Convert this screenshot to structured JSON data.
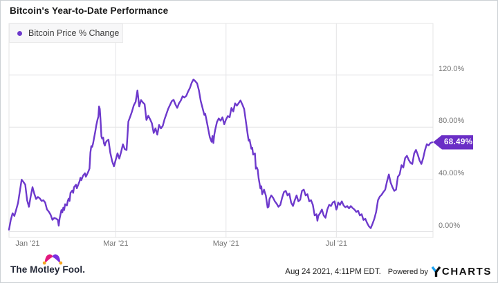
{
  "header": {
    "title": "Bitcoin's Year-to-Date Performance"
  },
  "legend": {
    "label": "Bitcoin Price % Change"
  },
  "colors": {
    "line": "#6d39cc",
    "badge_bg": "#6a2ec6",
    "grid": "#e4e4e6",
    "axis_label": "#757575",
    "legend_bg": "#f7f7f8",
    "fool_pink": "#e2187d",
    "fool_purple": "#7b2fe0",
    "fool_gold": "#f5a623",
    "ycharts_blue": "#18a0f0"
  },
  "chart_data": {
    "type": "line",
    "title": "Bitcoin's Year-to-Date Performance",
    "x_unit": "days_from_jan1_2021",
    "x_range_dates": [
      "2021-01-01",
      "2021-08-24"
    ],
    "grid": true,
    "legend_position": "top-left",
    "last_value": 68.49,
    "last_value_label": "68.49%",
    "x_axis": {
      "ticks": [
        {
          "day": 0,
          "label": "Jan '21"
        },
        {
          "day": 59,
          "label": "Mar '21"
        },
        {
          "day": 120,
          "label": "May '21"
        },
        {
          "day": 181,
          "label": "Jul '21"
        }
      ]
    },
    "y_axis": {
      "ticks": [
        {
          "value": 120,
          "label": "120.0%"
        },
        {
          "value": 80,
          "label": "80.00%"
        },
        {
          "value": 40,
          "label": "40.00%"
        },
        {
          "value": 0,
          "label": "0.00%"
        }
      ],
      "range": [
        -5,
        145
      ]
    },
    "series": [
      {
        "name": "Bitcoin Price % Change",
        "color": "#6d39cc",
        "points": [
          [
            0,
            1.5
          ],
          [
            1,
            9
          ],
          [
            2,
            14
          ],
          [
            3,
            12
          ],
          [
            4,
            17
          ],
          [
            5,
            22
          ],
          [
            6,
            31
          ],
          [
            7,
            39.8
          ],
          [
            8,
            38
          ],
          [
            9,
            36
          ],
          [
            10,
            24
          ],
          [
            11,
            19
          ],
          [
            12,
            27
          ],
          [
            13,
            34
          ],
          [
            14,
            29
          ],
          [
            15,
            25
          ],
          [
            16,
            26.5
          ],
          [
            17,
            25.5
          ],
          [
            18,
            23.5
          ],
          [
            19,
            24
          ],
          [
            20,
            22.3
          ],
          [
            21,
            17
          ],
          [
            22,
            15.3
          ],
          [
            23,
            13
          ],
          [
            24,
            9
          ],
          [
            25,
            10.5
          ],
          [
            26,
            10
          ],
          [
            27,
            9
          ],
          [
            27.5,
            4.5
          ],
          [
            28,
            10
          ],
          [
            29,
            16.5
          ],
          [
            29.5,
            14.7
          ],
          [
            30,
            18.3
          ],
          [
            30.5,
            16.5
          ],
          [
            31,
            21
          ],
          [
            32,
            20
          ],
          [
            32.5,
            23.5
          ],
          [
            33,
            25.3
          ],
          [
            33.5,
            23.5
          ],
          [
            34,
            29.7
          ],
          [
            35,
            31.5
          ],
          [
            35.5,
            29.7
          ],
          [
            36,
            34.1
          ],
          [
            37,
            35.9
          ],
          [
            37.5,
            33.2
          ],
          [
            38,
            35
          ],
          [
            39,
            38.5
          ],
          [
            39.5,
            41.2
          ],
          [
            40,
            39.4
          ],
          [
            41,
            43
          ],
          [
            42,
            44.7
          ],
          [
            42.5,
            42
          ],
          [
            43,
            43.3
          ],
          [
            44,
            46.5
          ],
          [
            44.5,
            48.3
          ],
          [
            45,
            60.6
          ],
          [
            45.5,
            65.5
          ],
          [
            46,
            65
          ],
          [
            46.5,
            67.6
          ],
          [
            47,
            71.5
          ],
          [
            47.7,
            76.5
          ],
          [
            48.3,
            81.7
          ],
          [
            49,
            86.1
          ],
          [
            49.4,
            88
          ],
          [
            49.8,
            95.9
          ],
          [
            50.2,
            94.1
          ],
          [
            50.6,
            86.1
          ],
          [
            51.1,
            72.9
          ],
          [
            51.5,
            71.2
          ],
          [
            52.1,
            72
          ],
          [
            52.5,
            67.6
          ],
          [
            53,
            65.9
          ],
          [
            53.4,
            68
          ],
          [
            54,
            69.4
          ],
          [
            55,
            70.5
          ],
          [
            56,
            60.6
          ],
          [
            57,
            54
          ],
          [
            58,
            50
          ],
          [
            59,
            55
          ],
          [
            60,
            60
          ],
          [
            61,
            56
          ],
          [
            62,
            61
          ],
          [
            63,
            66.9
          ],
          [
            64,
            63.2
          ],
          [
            65,
            62.5
          ],
          [
            66,
            84.4
          ],
          [
            67,
            88
          ],
          [
            68,
            92
          ],
          [
            69,
            96.7
          ],
          [
            70,
            99.4
          ],
          [
            71,
            108.2
          ],
          [
            72,
            95.9
          ],
          [
            73,
            100.8
          ],
          [
            74,
            99
          ],
          [
            75,
            97.6
          ],
          [
            76,
            85.6
          ],
          [
            77,
            88.8
          ],
          [
            78,
            86.1
          ],
          [
            79,
            83
          ],
          [
            80,
            75.6
          ],
          [
            81,
            79.1
          ],
          [
            82,
            74.3
          ],
          [
            83,
            81.7
          ],
          [
            84,
            79.1
          ],
          [
            85,
            81
          ],
          [
            86,
            86.1
          ],
          [
            87,
            90
          ],
          [
            88,
            94
          ],
          [
            89,
            97
          ],
          [
            90,
            100
          ],
          [
            91,
            101
          ],
          [
            92,
            97.5
          ],
          [
            93,
            94.8
          ],
          [
            94,
            98.3
          ],
          [
            95,
            100.5
          ],
          [
            96,
            103.7
          ],
          [
            97,
            102.8
          ],
          [
            98,
            104
          ],
          [
            99,
            107.3
          ],
          [
            100,
            110
          ],
          [
            101,
            114
          ],
          [
            102,
            116.6
          ],
          [
            103,
            115.3
          ],
          [
            104,
            113.6
          ],
          [
            105,
            108.2
          ],
          [
            106,
            100.1
          ],
          [
            107,
            94.8
          ],
          [
            108,
            89.4
          ],
          [
            108.5,
            90.3
          ],
          [
            109,
            87
          ],
          [
            110,
            79.6
          ],
          [
            111,
            72.4
          ],
          [
            112,
            68.8
          ],
          [
            112.5,
            73.3
          ],
          [
            113,
            67.9
          ],
          [
            113.5,
            74.2
          ],
          [
            114,
            78
          ],
          [
            115,
            84
          ],
          [
            116,
            86.7
          ],
          [
            117,
            85
          ],
          [
            118,
            87.6
          ],
          [
            119,
            82.3
          ],
          [
            120,
            86
          ],
          [
            121,
            88.5
          ],
          [
            122,
            87.6
          ],
          [
            123,
            94.8
          ],
          [
            124,
            92.1
          ],
          [
            125,
            98.3
          ],
          [
            126,
            96.5
          ],
          [
            127,
            98.5
          ],
          [
            128,
            100.5
          ],
          [
            129,
            97.5
          ],
          [
            130,
            93.9
          ],
          [
            131,
            84
          ],
          [
            132,
            74.2
          ],
          [
            132.5,
            69.7
          ],
          [
            133,
            70.6
          ],
          [
            134,
            63.5
          ],
          [
            134.5,
            64.3
          ],
          [
            135,
            59
          ],
          [
            136,
            59.9
          ],
          [
            136.5,
            48.2
          ],
          [
            137,
            49.1
          ],
          [
            137.5,
            47.4
          ],
          [
            138,
            41
          ],
          [
            139,
            33
          ],
          [
            139.5,
            34.8
          ],
          [
            140,
            28.6
          ],
          [
            141,
            32.1
          ],
          [
            142,
            27.7
          ],
          [
            143,
            18.4
          ],
          [
            143.5,
            19
          ],
          [
            144,
            25
          ],
          [
            145,
            27.7
          ],
          [
            146,
            25.9
          ],
          [
            147,
            23.2
          ],
          [
            148,
            21.4
          ],
          [
            149,
            19
          ],
          [
            150,
            20.5
          ],
          [
            151,
            25.9
          ],
          [
            152,
            30.3
          ],
          [
            153,
            31.2
          ],
          [
            154,
            27.7
          ],
          [
            155,
            29.1
          ],
          [
            156,
            22.3
          ],
          [
            157,
            19.6
          ],
          [
            158,
            24.1
          ],
          [
            159,
            27.7
          ],
          [
            160,
            23.2
          ],
          [
            161,
            24.4
          ],
          [
            162,
            31.2
          ],
          [
            163,
            32.1
          ],
          [
            164,
            27.7
          ],
          [
            165,
            28.6
          ],
          [
            166,
            23.2
          ],
          [
            167,
            24.1
          ],
          [
            168,
            20.5
          ],
          [
            169,
            12.4
          ],
          [
            170,
            13.3
          ],
          [
            170.5,
            8.3
          ],
          [
            171,
            12
          ],
          [
            172,
            14.2
          ],
          [
            173,
            16.9
          ],
          [
            174,
            12.4
          ],
          [
            175,
            10.6
          ],
          [
            176,
            16.9
          ],
          [
            177,
            20.5
          ],
          [
            178,
            19.6
          ],
          [
            179,
            22.3
          ],
          [
            180,
            23.2
          ],
          [
            181,
            16.9
          ],
          [
            181.5,
            18.7
          ],
          [
            182,
            22.3
          ],
          [
            183,
            20.5
          ],
          [
            184,
            23.2
          ],
          [
            185,
            20
          ],
          [
            186,
            18.7
          ],
          [
            187,
            19.6
          ],
          [
            188,
            17.8
          ],
          [
            189,
            19.6
          ],
          [
            190,
            18
          ],
          [
            191,
            16.9
          ],
          [
            192,
            15.1
          ],
          [
            193,
            16
          ],
          [
            194,
            12.4
          ],
          [
            195,
            13.3
          ],
          [
            196,
            8.9
          ],
          [
            197,
            9.8
          ],
          [
            198,
            6.5
          ],
          [
            199,
            4
          ],
          [
            200,
            2.6
          ],
          [
            201,
            6
          ],
          [
            202,
            9.8
          ],
          [
            203,
            15.1
          ],
          [
            204,
            24.1
          ],
          [
            205,
            26.8
          ],
          [
            206,
            28.2
          ],
          [
            207,
            30.3
          ],
          [
            208,
            32.1
          ],
          [
            209,
            38.4
          ],
          [
            210,
            43.8
          ],
          [
            211,
            37.5
          ],
          [
            212,
            34
          ],
          [
            213,
            31.2
          ],
          [
            214,
            32.1
          ],
          [
            215,
            42
          ],
          [
            216,
            43.8
          ],
          [
            217,
            50.9
          ],
          [
            218,
            49.1
          ],
          [
            219,
            56.3
          ],
          [
            220,
            58.1
          ],
          [
            221,
            55
          ],
          [
            222,
            52.7
          ],
          [
            223,
            51.8
          ],
          [
            224,
            59.9
          ],
          [
            225,
            62.6
          ],
          [
            226,
            59
          ],
          [
            227,
            54.5
          ],
          [
            228,
            51.8
          ],
          [
            229,
            56.3
          ],
          [
            230,
            62.6
          ],
          [
            231,
            67
          ],
          [
            232,
            66.1
          ],
          [
            233,
            67.9
          ],
          [
            234,
            68.49
          ]
        ]
      }
    ]
  },
  "footer": {
    "brand": "The Motley Fool.",
    "timestamp": "Aug 24 2021, 4:11PM EDT.",
    "powered_by": "Powered by",
    "ycharts": {
      "y": "Y",
      "charts": "CHARTS"
    }
  }
}
